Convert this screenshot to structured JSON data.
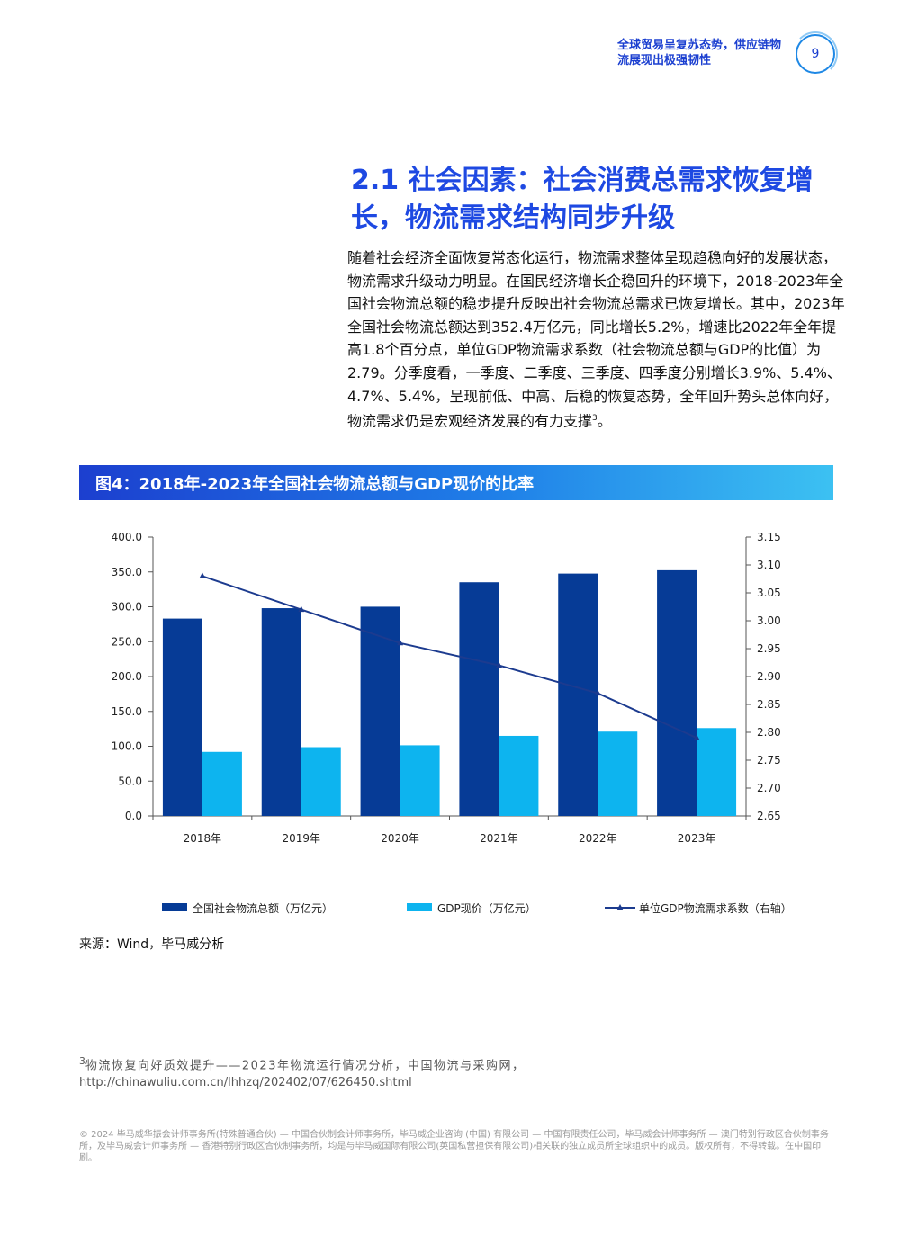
{
  "header": {
    "running_title": "全球贸易呈复苏态势，供应链物流展现出极强韧性",
    "page_number": "9"
  },
  "section": {
    "title": "2.1 社会因素：社会消费总需求恢复增长，物流需求结构同步升级",
    "body": "随着社会经济全面恢复常态化运行，物流需求整体呈现趋稳向好的发展状态，物流需求升级动力明显。在国民经济增长企稳回升的环境下，2018-2023年全国社会物流总额的稳步提升反映出社会物流总需求已恢复增长。其中，2023年全国社会物流总额达到352.4万亿元，同比增长5.2%，增速比2022年全年提高1.8个百分点，单位GDP物流需求系数（社会物流总额与GDP的比值）为2.79。分季度看，一季度、二季度、三季度、四季度分别增长3.9%、5.4%、4.7%、5.4%，呈现前低、中高、后稳的恢复态势，全年回升势头总体向好，物流需求仍是宏观经济发展的有力支撑",
    "body_end": "。",
    "footnote_ref": "3"
  },
  "figure": {
    "caption": "图4：2018年-2023年全国社会物流总额与GDP现价的比率"
  },
  "chart_data": {
    "type": "bar",
    "categories": [
      "2018年",
      "2019年",
      "2020年",
      "2021年",
      "2022年",
      "2023年"
    ],
    "series": [
      {
        "name": "全国社会物流总额（万亿元）",
        "type": "bar",
        "axis": "left",
        "color": "#063b96",
        "values": [
          283.1,
          298.0,
          300.1,
          335.2,
          347.6,
          352.4
        ]
      },
      {
        "name": "GDP现价（万亿元）",
        "type": "bar",
        "axis": "left",
        "color": "#0db4ef",
        "values": [
          91.9,
          98.7,
          101.4,
          114.9,
          121.0,
          126.1
        ]
      },
      {
        "name": "单位GDP物流需求系数（右轴）",
        "type": "line",
        "axis": "right",
        "color": "#1c3b8f",
        "values": [
          3.08,
          3.02,
          2.96,
          2.92,
          2.87,
          2.79
        ]
      }
    ],
    "y_left": {
      "min": 0,
      "max": 400,
      "step": 50,
      "ticks": [
        "0.0",
        "50.0",
        "100.0",
        "150.0",
        "200.0",
        "250.0",
        "300.0",
        "350.0",
        "400.0"
      ]
    },
    "y_right": {
      "min": 2.65,
      "max": 3.15,
      "step": 0.05,
      "ticks": [
        "2.65",
        "2.70",
        "2.75",
        "2.80",
        "2.85",
        "2.90",
        "2.95",
        "3.00",
        "3.05",
        "3.10",
        "3.15"
      ]
    },
    "grid": false,
    "legend": "bottom"
  },
  "source": "来源：Wind，毕马威分析",
  "footnote": {
    "number": "3",
    "title": "物流恢复向好质效提升——2023年物流运行情况分析，中国物流与采购网，",
    "url": "http://chinawuliu.com.cn/lhhzq/202402/07/626450.shtml"
  },
  "copyright": "© 2024 毕马威华振会计师事务所(特殊普通合伙) — 中国合伙制会计师事务所，毕马威企业咨询 (中国) 有限公司 — 中国有限责任公司，毕马威会计师事务所 — 澳门特别行政区合伙制事务所，及毕马威会计师事务所 — 香港特别行政区合伙制事务所，均是与毕马威国际有限公司(英国私营担保有限公司)相关联的独立成员所全球组织中的成员。版权所有，不得转载。在中国印刷。"
}
